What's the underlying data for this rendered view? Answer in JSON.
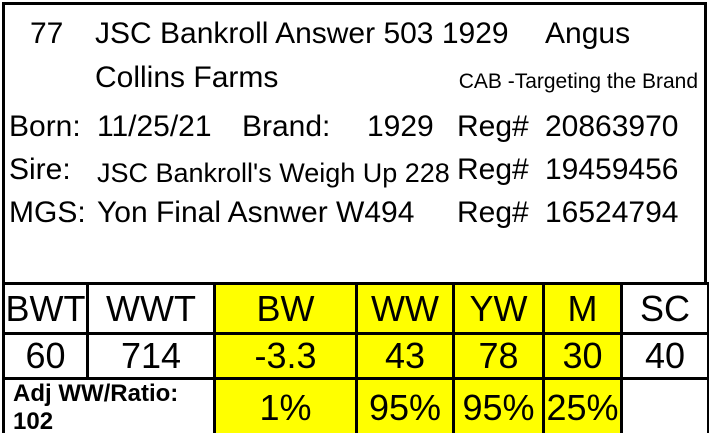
{
  "header": {
    "lot_number": "77",
    "animal_name": "JSC Bankroll Answer 503 1929",
    "breed": "Angus",
    "owner": "Collins Farms",
    "program": "CAB -Targeting the Brand"
  },
  "details": {
    "born_label": "Born:",
    "born_value": "11/25/21",
    "brand_label": "Brand:",
    "brand_value": "1929",
    "born_reg_label": "Reg#",
    "born_reg_value": "20863970",
    "sire_label": "Sire:",
    "sire_value": "JSC Bankroll's Weigh Up 228",
    "sire_reg_label": "Reg#",
    "sire_reg_value": "19459456",
    "mgs_label": "MGS:",
    "mgs_value": "Yon Final Asnwer W494",
    "mgs_reg_label": "Reg#",
    "mgs_reg_value": "16524794"
  },
  "epd_table": {
    "highlight_color": "#FFFF00",
    "columns": [
      "BWT",
      "WWT",
      "BW",
      "WW",
      "YW",
      "M",
      "SC"
    ],
    "highlighted_columns": [
      "BW",
      "WW",
      "YW",
      "M"
    ],
    "values": [
      "60",
      "714",
      "-3.3",
      "43",
      "78",
      "30",
      "40"
    ],
    "adj_ww_ratio_label": "Adj WW/Ratio: 102",
    "percentages": [
      "1%",
      "95%",
      "95%",
      "25%",
      ""
    ]
  }
}
